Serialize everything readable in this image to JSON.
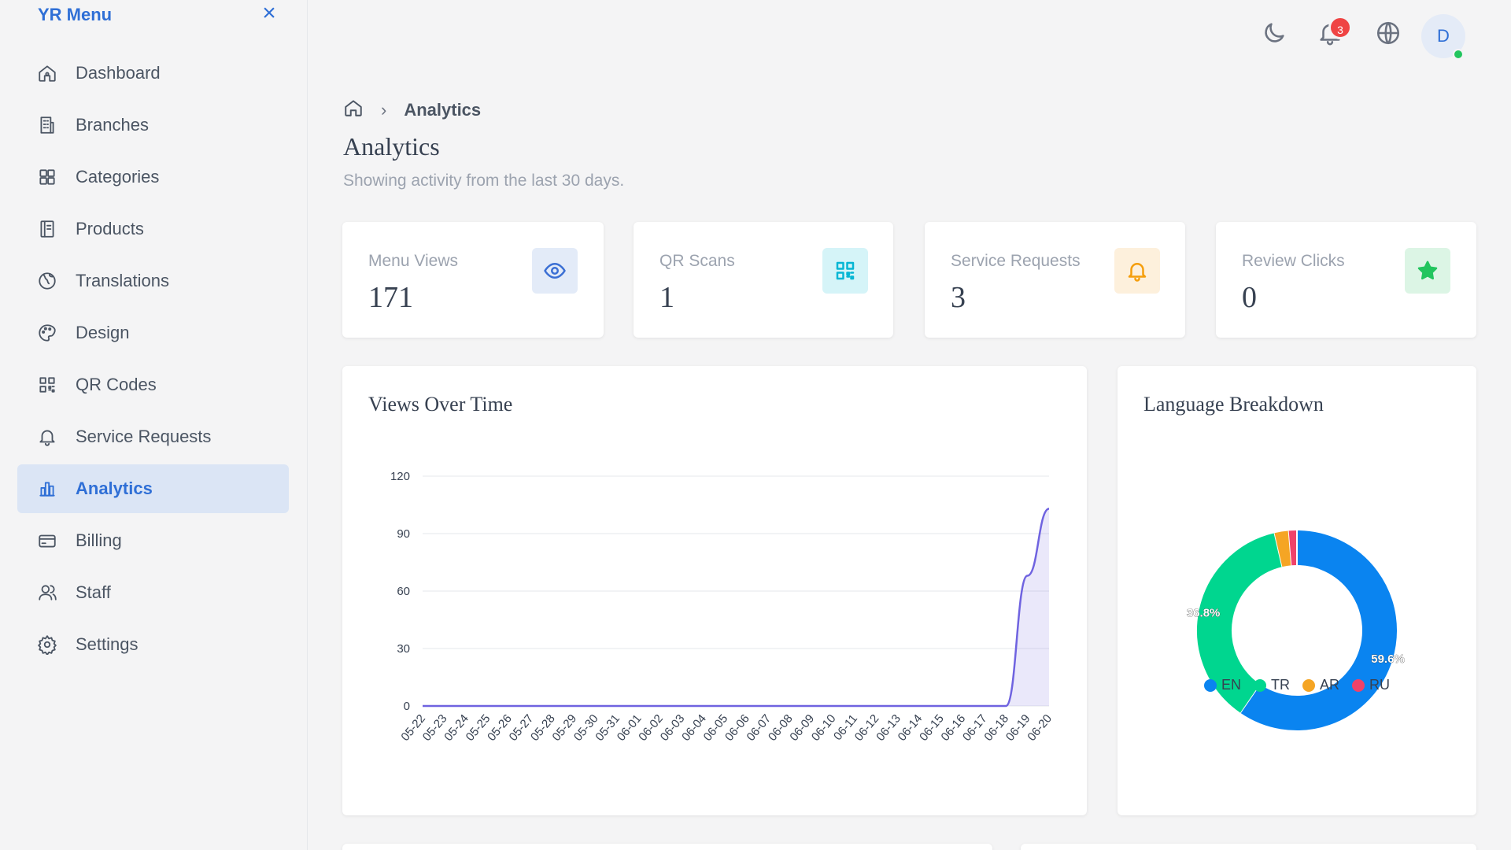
{
  "brand": {
    "title": "YR Menu"
  },
  "sidebar": {
    "items": [
      {
        "label": "Dashboard",
        "icon": "home-icon",
        "active": false
      },
      {
        "label": "Branches",
        "icon": "building-icon",
        "active": false
      },
      {
        "label": "Categories",
        "icon": "grid-icon",
        "active": false
      },
      {
        "label": "Products",
        "icon": "book-icon",
        "active": false
      },
      {
        "label": "Translations",
        "icon": "globe-icon",
        "active": false
      },
      {
        "label": "Design",
        "icon": "palette-icon",
        "active": false
      },
      {
        "label": "QR Codes",
        "icon": "qr-icon",
        "active": false
      },
      {
        "label": "Service Requests",
        "icon": "bell-icon",
        "active": false
      },
      {
        "label": "Analytics",
        "icon": "bar-chart-icon",
        "active": true
      },
      {
        "label": "Billing",
        "icon": "credit-card-icon",
        "active": false
      },
      {
        "label": "Staff",
        "icon": "users-icon",
        "active": false
      },
      {
        "label": "Settings",
        "icon": "gear-icon",
        "active": false
      }
    ]
  },
  "header": {
    "notification_count": "3",
    "avatar_initial": "D"
  },
  "breadcrumb": {
    "current": "Analytics"
  },
  "page": {
    "title": "Analytics",
    "subtitle": "Showing activity from the last 30 days."
  },
  "stats": [
    {
      "label": "Menu Views",
      "value": "171",
      "icon": "eye-icon",
      "color": "#3b6fd4",
      "bg": "#e3ebf8"
    },
    {
      "label": "QR Scans",
      "value": "1",
      "icon": "qr-scan-icon",
      "color": "#06b6d4",
      "bg": "#d5f4f8"
    },
    {
      "label": "Service Requests",
      "value": "3",
      "icon": "bell-icon",
      "color": "#f59e0b",
      "bg": "#fdf0dc"
    },
    {
      "label": "Review Clicks",
      "value": "0",
      "icon": "star-icon",
      "color": "#22c55e",
      "bg": "#dcf5e5"
    }
  ],
  "views_chart": {
    "title": "Views Over Time",
    "chart_data": {
      "type": "area",
      "ylim": [
        0,
        120
      ],
      "yticks": [
        "0",
        "30",
        "60",
        "90",
        "120"
      ],
      "x": [
        "05-22",
        "05-23",
        "05-24",
        "05-25",
        "05-26",
        "05-27",
        "05-28",
        "05-29",
        "05-30",
        "05-31",
        "06-01",
        "06-02",
        "06-03",
        "06-04",
        "06-05",
        "06-06",
        "06-07",
        "06-08",
        "06-09",
        "06-10",
        "06-11",
        "06-12",
        "06-13",
        "06-14",
        "06-15",
        "06-16",
        "06-17",
        "06-18",
        "06-19",
        "06-20"
      ],
      "values": [
        0,
        0,
        0,
        0,
        0,
        0,
        0,
        0,
        0,
        0,
        0,
        0,
        0,
        0,
        0,
        0,
        0,
        0,
        0,
        0,
        0,
        0,
        0,
        0,
        0,
        0,
        0,
        0,
        68,
        103
      ],
      "color": "#6f63e0"
    }
  },
  "language_chart": {
    "title": "Language Breakdown",
    "chart_data": {
      "type": "pie",
      "labels": [
        "EN",
        "TR",
        "AR",
        "RU"
      ],
      "values": [
        59.6,
        36.8,
        2.3,
        1.3
      ],
      "data_labels": [
        "59.6%",
        "36.8%",
        "",
        ""
      ],
      "colors": [
        "#0a84f0",
        "#00d68f",
        "#f5a524",
        "#f0426a"
      ]
    }
  }
}
